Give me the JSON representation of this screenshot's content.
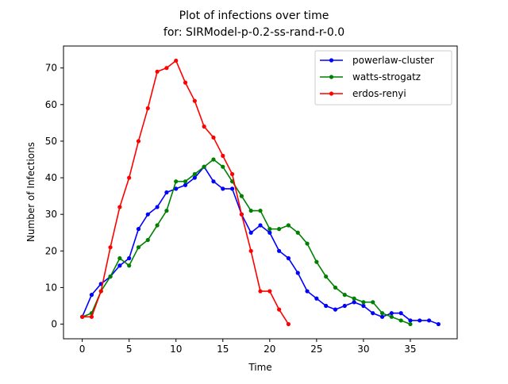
{
  "chart_data": {
    "type": "line",
    "title_line1": "Plot of infections over time",
    "title_line2": "for: SIRModel-p-0.2-ss-rand-r-0.0",
    "xlabel": "Time",
    "ylabel": "Number of Infections",
    "xlim": [
      -2,
      40
    ],
    "ylim": [
      -4,
      76
    ],
    "xticks": [
      0,
      5,
      10,
      15,
      20,
      25,
      30,
      35
    ],
    "yticks": [
      0,
      10,
      20,
      30,
      40,
      50,
      60,
      70
    ],
    "grid": false,
    "legend_position": "top-right",
    "series": [
      {
        "name": "powerlaw-cluster",
        "color": "#0000ff",
        "x": [
          0,
          1,
          2,
          3,
          4,
          5,
          6,
          7,
          8,
          9,
          10,
          11,
          12,
          13,
          14,
          15,
          16,
          17,
          18,
          19,
          20,
          21,
          22,
          23,
          24,
          25,
          26,
          27,
          28,
          29,
          30,
          31,
          32,
          33,
          34,
          35,
          36,
          37,
          38
        ],
        "y": [
          2,
          8,
          11,
          13,
          16,
          18,
          26,
          30,
          32,
          36,
          37,
          38,
          40,
          43,
          39,
          37,
          37,
          30,
          25,
          27,
          25,
          20,
          18,
          14,
          9,
          7,
          5,
          4,
          5,
          6,
          5,
          3,
          2,
          3,
          3,
          1,
          1,
          1,
          0
        ]
      },
      {
        "name": "watts-strogatz",
        "color": "#008000",
        "x": [
          0,
          1,
          2,
          3,
          4,
          5,
          6,
          7,
          8,
          9,
          10,
          11,
          12,
          13,
          14,
          15,
          16,
          17,
          18,
          19,
          20,
          21,
          22,
          23,
          24,
          25,
          26,
          27,
          28,
          29,
          30,
          31,
          32,
          33,
          34,
          35
        ],
        "y": [
          2,
          3,
          9,
          13,
          18,
          16,
          21,
          23,
          27,
          31,
          39,
          39,
          41,
          43,
          45,
          43,
          39,
          35,
          31,
          31,
          26,
          26,
          27,
          25,
          22,
          17,
          13,
          10,
          8,
          7,
          6,
          6,
          3,
          2,
          1,
          0
        ]
      },
      {
        "name": "erdos-renyi",
        "color": "#ff0000",
        "x": [
          0,
          1,
          2,
          3,
          4,
          5,
          6,
          7,
          8,
          9,
          10,
          11,
          12,
          13,
          14,
          15,
          16,
          17,
          18,
          19,
          20,
          21,
          22
        ],
        "y": [
          2,
          2,
          9,
          21,
          32,
          40,
          50,
          59,
          69,
          70,
          72,
          66,
          61,
          54,
          51,
          46,
          41,
          30,
          20,
          9,
          9,
          4,
          0
        ]
      }
    ]
  }
}
